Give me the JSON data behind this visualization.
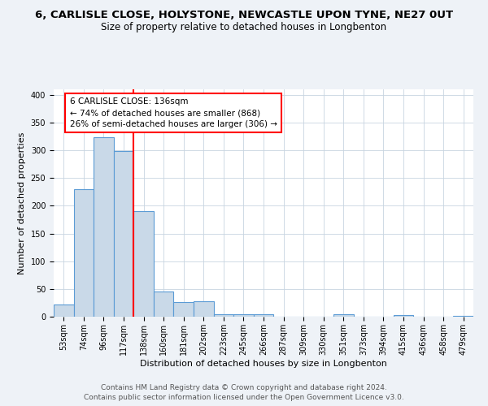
{
  "title1": "6, CARLISLE CLOSE, HOLYSTONE, NEWCASTLE UPON TYNE, NE27 0UT",
  "title2": "Size of property relative to detached houses in Longbenton",
  "xlabel": "Distribution of detached houses by size in Longbenton",
  "ylabel": "Number of detached properties",
  "categories": [
    "53sqm",
    "74sqm",
    "96sqm",
    "117sqm",
    "138sqm",
    "160sqm",
    "181sqm",
    "202sqm",
    "223sqm",
    "245sqm",
    "266sqm",
    "287sqm",
    "309sqm",
    "330sqm",
    "351sqm",
    "373sqm",
    "394sqm",
    "415sqm",
    "436sqm",
    "458sqm",
    "479sqm"
  ],
  "values": [
    22,
    230,
    323,
    298,
    190,
    46,
    27,
    28,
    5,
    5,
    4,
    0,
    0,
    0,
    5,
    0,
    0,
    3,
    0,
    0,
    2
  ],
  "bar_color": "#c9d9e8",
  "bar_edge_color": "#5b9bd5",
  "property_line_color": "red",
  "annotation_text": "6 CARLISLE CLOSE: 136sqm\n← 74% of detached houses are smaller (868)\n26% of semi-detached houses are larger (306) →",
  "annotation_box_color": "white",
  "annotation_box_edge_color": "red",
  "ylim": [
    0,
    410
  ],
  "yticks": [
    0,
    50,
    100,
    150,
    200,
    250,
    300,
    350,
    400
  ],
  "footer1": "Contains HM Land Registry data © Crown copyright and database right 2024.",
  "footer2": "Contains public sector information licensed under the Open Government Licence v3.0.",
  "background_color": "#eef2f7",
  "plot_background_color": "#ffffff",
  "grid_color": "#c8d4e0",
  "title1_fontsize": 9.5,
  "title2_fontsize": 8.5,
  "xlabel_fontsize": 8,
  "ylabel_fontsize": 8,
  "tick_fontsize": 7,
  "annotation_fontsize": 7.5,
  "footer_fontsize": 6.5
}
